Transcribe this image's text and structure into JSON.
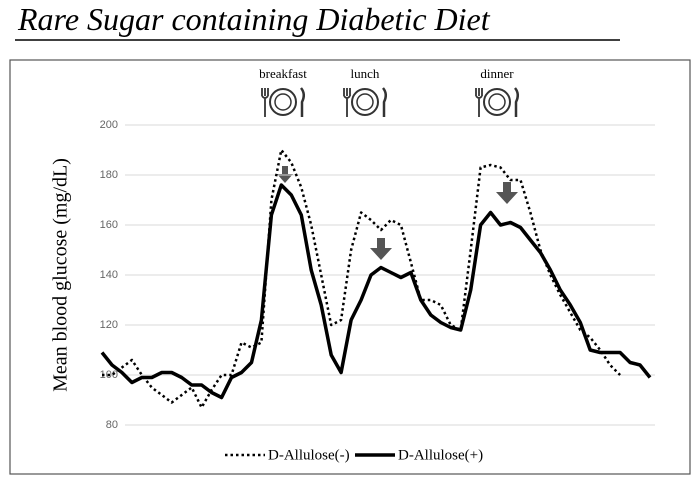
{
  "chart_data": {
    "type": "line",
    "title": "Rare Sugar containing Diabetic Diet",
    "ylabel": "Mean blood glucose (mg/dL)",
    "annotations": [
      "breakfast",
      "lunch",
      "dinner"
    ],
    "categories": [
      null,
      null,
      null,
      null,
      null,
      null,
      null,
      null,
      null,
      null,
      null,
      null,
      null,
      null,
      null,
      null,
      null,
      null,
      null,
      null,
      null,
      null,
      null,
      null,
      null,
      null,
      null,
      null,
      null,
      null,
      null,
      null,
      null,
      null,
      null,
      null,
      null,
      null,
      null,
      null,
      null,
      null,
      null,
      null,
      null,
      null,
      null,
      null,
      null,
      null,
      null,
      null,
      null,
      null,
      null,
      null
    ],
    "series": [
      {
        "name": "D-Allulose(-)",
        "color": "#000000",
        "style": "dotted",
        "values": [
          100,
          100,
          103,
          106,
          100,
          95,
          92,
          89,
          92,
          95,
          87,
          94,
          100,
          100,
          113,
          111,
          113,
          170,
          190,
          185,
          175,
          160,
          140,
          120,
          122,
          150,
          165,
          162,
          158,
          162,
          160,
          145,
          130,
          130,
          128,
          120,
          118,
          150,
          183,
          184,
          183,
          178,
          178,
          165,
          150,
          140,
          132,
          125,
          118,
          115,
          110,
          104,
          100,
          null,
          null,
          null
        ]
      },
      {
        "name": "D-Allulose(+)",
        "color": "#000000",
        "style": "solid",
        "values": [
          109,
          104,
          101,
          97,
          99,
          99,
          101,
          101,
          99,
          96,
          96,
          93,
          91,
          99,
          101,
          105,
          122,
          164,
          176,
          172,
          164,
          142,
          128,
          108,
          101,
          122,
          130,
          140,
          143,
          141,
          139,
          141,
          130,
          124,
          121,
          119,
          118,
          134,
          160,
          165,
          160,
          161,
          159,
          154,
          149,
          142,
          134,
          128,
          121,
          110,
          109,
          109,
          109,
          105,
          104,
          99
        ]
      }
    ],
    "ylim": [
      80,
      200
    ],
    "yticks": [
      80,
      100,
      120,
      140,
      160,
      180,
      200
    ],
    "grid": true
  }
}
